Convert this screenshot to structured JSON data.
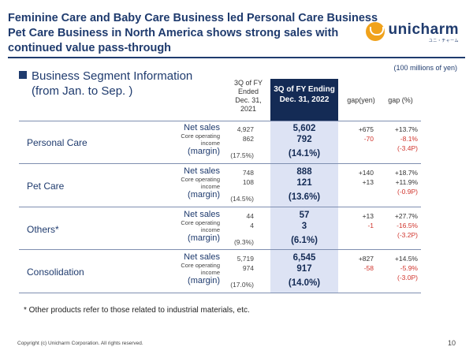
{
  "header": {
    "title_lines": [
      "Feminine Care and Baby Care Business led Personal Care Business",
      "Pet Care Business in North America shows strong sales with",
      "continued value pass-through"
    ],
    "logo_word": "unicharm",
    "logo_sub": "ユニ・チャーム",
    "brand_color": "#1f3b6e",
    "logo_color": "#f0a21b"
  },
  "unit_note": "(100 millions of yen)",
  "section": {
    "title": "Business Segment Information",
    "subtitle": "(from Jan. to Sep. )"
  },
  "columns": {
    "prev": "3Q of FY Ended Dec. 31, 2021",
    "curr": "3Q of FY Ending Dec. 31, 2022",
    "gap_yen": "gap(yen)",
    "gap_pct": "gap (%)"
  },
  "labels": {
    "net_sales": "Net sales",
    "core_op_line1": "Core operating",
    "core_op_line2": "income",
    "margin": "(margin)"
  },
  "segments": [
    {
      "name": "Personal Care",
      "prev": {
        "net": "4,927",
        "op": "862",
        "margin": "(17.5%)"
      },
      "curr": {
        "net": "5,602",
        "op": "792",
        "margin": "(14.1%)"
      },
      "gap_yen": {
        "net": "+675",
        "op": "-70"
      },
      "gap_pct": {
        "net": "+13.7%",
        "op": "-8.1%",
        "margin": "(-3.4P)"
      }
    },
    {
      "name": "Pet Care",
      "prev": {
        "net": "748",
        "op": "108",
        "margin": "(14.5%)"
      },
      "curr": {
        "net": "888",
        "op": "121",
        "margin": "(13.6%)"
      },
      "gap_yen": {
        "net": "+140",
        "op": "+13"
      },
      "gap_pct": {
        "net": "+18.7%",
        "op": "+11.9%",
        "margin": "(-0.9P)"
      }
    },
    {
      "name": "Others*",
      "prev": {
        "net": "44",
        "op": "4",
        "margin": "(9.3%)"
      },
      "curr": {
        "net": "57",
        "op": "3",
        "margin": "(6.1%)"
      },
      "gap_yen": {
        "net": "+13",
        "op": "-1"
      },
      "gap_pct": {
        "net": "+27.7%",
        "op": "-16.5%",
        "margin": "(-3.2P)"
      }
    },
    {
      "name": "Consolidation",
      "prev": {
        "net": "5,719",
        "op": "974",
        "margin": "(17.0%)"
      },
      "curr": {
        "net": "6,545",
        "op": "917",
        "margin": "(14.0%)"
      },
      "gap_yen": {
        "net": "+827",
        "op": "-58"
      },
      "gap_pct": {
        "net": "+14.5%",
        "op": "-5.9%",
        "margin": "(-3.0P)"
      }
    }
  ],
  "footnote": "* Other products refer to those related to industrial materials, etc.",
  "copyright": "Copyright (c) Unicharm Corporation. All rights reserved.",
  "page_number": "10"
}
